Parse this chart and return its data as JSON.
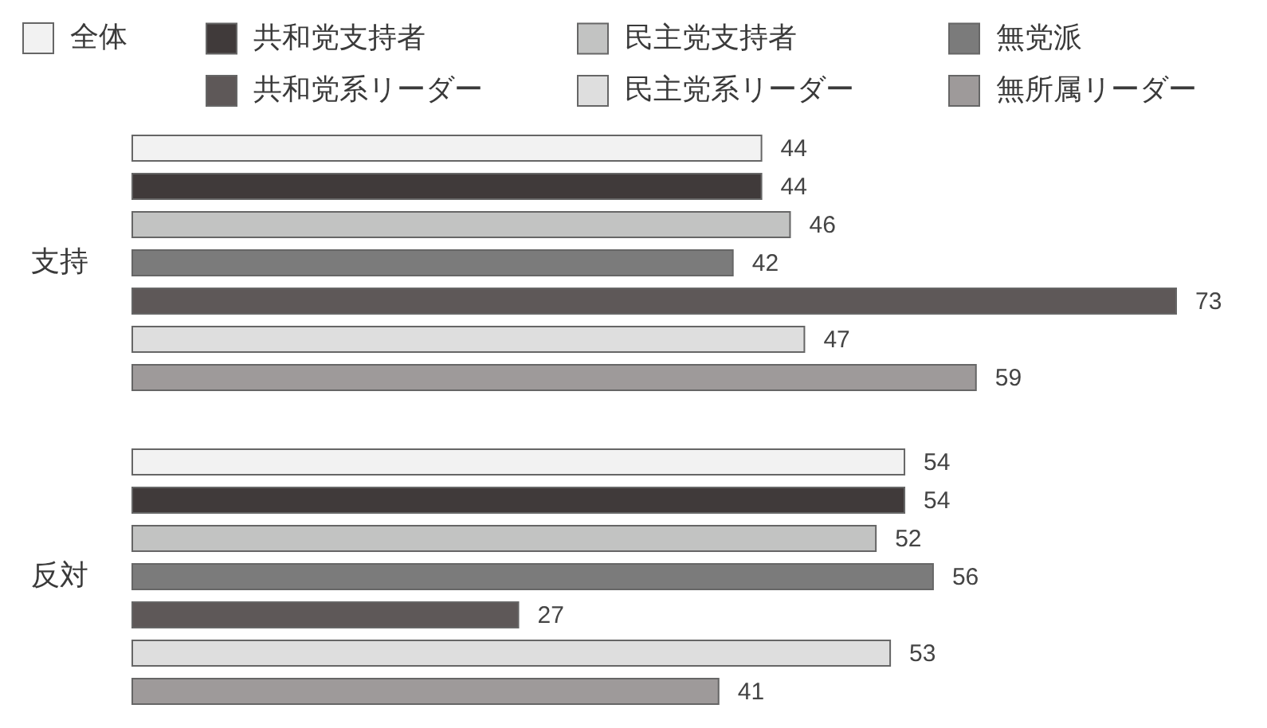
{
  "chart_data": {
    "type": "bar",
    "orientation": "horizontal",
    "categories": [
      "支持",
      "反対"
    ],
    "series": [
      {
        "name": "全体",
        "color": "#f2f2f2",
        "values": [
          44,
          54
        ]
      },
      {
        "name": "共和党支持者",
        "color": "#403a3a",
        "values": [
          44,
          54
        ]
      },
      {
        "name": "民主党支持者",
        "color": "#c2c3c2",
        "values": [
          46,
          52
        ]
      },
      {
        "name": "無党派",
        "color": "#7b7b7b",
        "values": [
          42,
          56
        ]
      },
      {
        "name": "共和党系リーダー",
        "color": "#5e5858",
        "values": [
          73,
          27
        ]
      },
      {
        "name": "民主党系リーダー",
        "color": "#dedede",
        "values": [
          47,
          53
        ]
      },
      {
        "name": "無所属リーダー",
        "color": "#9e9a9a",
        "values": [
          59,
          41
        ]
      }
    ],
    "data_labels": true,
    "legend": "top"
  }
}
